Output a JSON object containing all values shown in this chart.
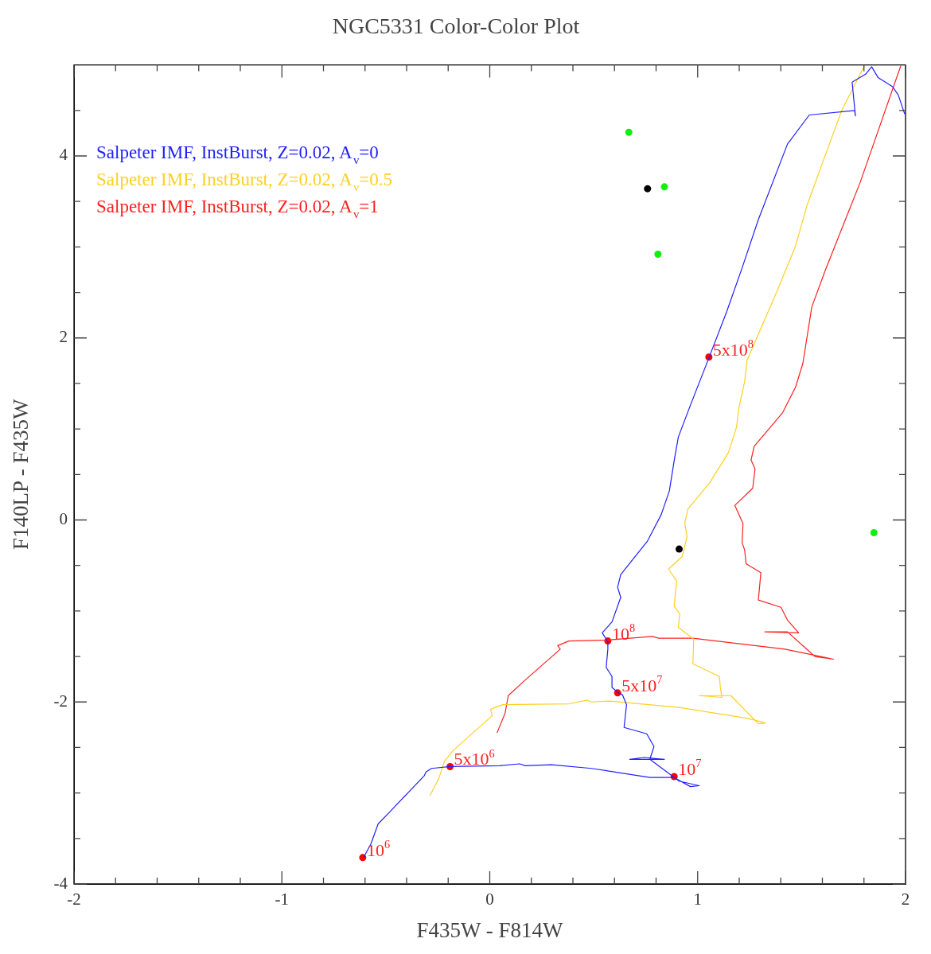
{
  "chart_data": {
    "type": "scatter",
    "title": "NGC5331 Color-Color Plot",
    "xlabel": "F435W - F814W",
    "ylabel": "F140LP - F435W",
    "xlim": [
      -2,
      2
    ],
    "ylim": [
      -4,
      5
    ],
    "xticks": [
      -2,
      {
        "value": -1.8,
        "label": null
      },
      {
        "value": -1.6,
        "label": null
      },
      {
        "value": -1.4,
        "label": null
      },
      {
        "value": -1.2,
        "label": null
      },
      -1,
      {
        "value": -0.8,
        "label": null
      },
      {
        "value": -0.6,
        "label": null
      },
      {
        "value": -0.4,
        "label": null
      },
      {
        "value": -0.2,
        "label": null
      },
      0,
      {
        "value": 0.2,
        "label": null
      },
      {
        "value": 0.4,
        "label": null
      },
      {
        "value": 0.6,
        "label": null
      },
      {
        "value": 0.8,
        "label": null
      },
      1,
      {
        "value": 1.2,
        "label": null
      },
      {
        "value": 1.4,
        "label": null
      },
      {
        "value": 1.6,
        "label": null
      },
      {
        "value": 1.8,
        "label": null
      },
      2
    ],
    "yticks": [
      -4,
      {
        "value": -3.5,
        "label": null
      },
      {
        "value": -3,
        "label": null
      },
      {
        "value": -2.5,
        "label": null
      },
      -2,
      {
        "value": -1.5,
        "label": null
      },
      {
        "value": -1,
        "label": null
      },
      {
        "value": -0.5,
        "label": null
      },
      0,
      {
        "value": 0.5,
        "label": null
      },
      {
        "value": 1,
        "label": null
      },
      {
        "value": 1.5,
        "label": null
      },
      2,
      {
        "value": 2.5,
        "label": null
      },
      {
        "value": 3,
        "label": null
      },
      {
        "value": 3.5,
        "label": null
      },
      4,
      {
        "value": 4.5,
        "label": null
      }
    ],
    "legend": "top left",
    "series": [
      {
        "name": "Salpeter IMF, InstBurst, Z=0.02, A$_{v}$=0",
        "type": "line",
        "marker": "none",
        "color": "#2020ff",
        "x": [
          -0.607,
          -0.572,
          -0.537,
          -0.482,
          -0.315,
          -0.307,
          -0.28,
          -0.191,
          0.047,
          0.144,
          0.171,
          0.296,
          0.49,
          0.77,
          0.887,
          0.965,
          1.008,
          0.911,
          0.77,
          0.673,
          0.743,
          0.84,
          0.77,
          0.79,
          0.755,
          0.646,
          0.658,
          0.638,
          0.619,
          0.588,
          0.588,
          0.56,
          0.568,
          0.568,
          0.541,
          0.588,
          0.63,
          0.615,
          0.63,
          0.759,
          0.825,
          0.864,
          0.887,
          0.907,
          0.965,
          1.054,
          1.14,
          1.214,
          1.292,
          1.432,
          1.537,
          1.755,
          1.759,
          1.743,
          1.809,
          1.837,
          1.868,
          1.938,
          1.965,
          1.996
        ],
        "values": [
          -3.71,
          -3.56,
          -3.34,
          -3.21,
          -2.81,
          -2.77,
          -2.73,
          -2.71,
          -2.7,
          -2.68,
          -2.7,
          -2.69,
          -2.73,
          -2.83,
          -2.83,
          -2.93,
          -2.92,
          -2.87,
          -2.63,
          -2.63,
          -2.61,
          -2.63,
          -2.63,
          -2.49,
          -2.35,
          -2.28,
          -2.03,
          -1.92,
          -1.9,
          -1.84,
          -1.72,
          -1.62,
          -1.42,
          -1.34,
          -1.24,
          -1.12,
          -0.85,
          -0.74,
          -0.6,
          -0.23,
          0.06,
          0.32,
          0.65,
          0.91,
          1.26,
          1.78,
          2.29,
          2.77,
          3.3,
          4.13,
          4.45,
          4.5,
          4.44,
          4.81,
          4.9,
          4.98,
          4.86,
          4.76,
          4.67,
          4.46
        ]
      },
      {
        "name": "Salpeter IMF, InstBurst, Z=0.02, A$_{v}$=0.5",
        "type": "line",
        "marker": "none",
        "color": "#ffd020",
        "x": [
          -0.288,
          -0.245,
          -0.218,
          -0.175,
          0.012,
          0.004,
          0.062,
          0.381,
          0.471,
          0.486,
          0.576,
          0.911,
          1.241,
          1.327,
          1.292,
          1.16,
          1.008,
          1.117,
          1.109,
          1.105,
          0.977,
          0.981,
          0.907,
          0.914,
          0.887,
          0.899,
          0.86,
          0.926,
          0.949,
          0.938,
          0.953,
          1.058,
          1.148,
          1.187,
          1.198,
          1.226,
          1.237,
          1.381,
          1.471,
          1.525,
          1.603,
          1.693,
          1.802
        ],
        "values": [
          -3.03,
          -2.84,
          -2.65,
          -2.53,
          -2.15,
          -2.08,
          -2.03,
          -2.02,
          -1.98,
          -2,
          -1.99,
          -2.06,
          -2.18,
          -2.23,
          -2.24,
          -1.93,
          -1.93,
          -1.95,
          -1.84,
          -1.72,
          -1.58,
          -1.31,
          -1.18,
          -1.03,
          -0.95,
          -0.67,
          -0.54,
          -0.4,
          -0.18,
          -0.03,
          0.12,
          0.41,
          0.74,
          1.02,
          1.23,
          1.52,
          1.75,
          2.51,
          3.01,
          3.45,
          3.94,
          4.5,
          4.99
        ]
      },
      {
        "name": "Salpeter IMF, InstBurst, Z=0.02, A$_{v}$=1",
        "type": "line",
        "marker": "none",
        "color": "#ff2020",
        "x": [
          0.035,
          0.074,
          0.089,
          0.16,
          0.339,
          0.327,
          0.381,
          0.568,
          0.782,
          0.813,
          0.977,
          1.42,
          1.654,
          1.564,
          1.432,
          1.323,
          1.486,
          1.432,
          1.401,
          1.292,
          1.304,
          1.233,
          1.226,
          1.214,
          1.218,
          1.179,
          1.265,
          1.276,
          1.257,
          1.272,
          1.409,
          1.471,
          1.506,
          1.549,
          1.615,
          1.782,
          1.977
        ],
        "values": [
          -2.34,
          -2.12,
          -1.93,
          -1.78,
          -1.42,
          -1.38,
          -1.33,
          -1.32,
          -1.28,
          -1.3,
          -1.3,
          -1.42,
          -1.53,
          -1.5,
          -1.23,
          -1.23,
          -1.24,
          -1.1,
          -0.96,
          -0.88,
          -0.58,
          -0.48,
          -0.33,
          -0.25,
          -0.04,
          0.16,
          0.35,
          0.56,
          0.66,
          0.81,
          1.18,
          1.46,
          1.72,
          2.34,
          2.75,
          3.71,
          4.99
        ]
      },
      {
        "marker": "circle",
        "color": "#10f010",
        "x": [
          0.669,
          0.84,
          0.809,
          1.848
        ],
        "values": [
          4.26,
          3.66,
          2.92,
          -0.14
        ]
      },
      {
        "marker": "circle",
        "color": "#000000",
        "x": [
          0.759,
          0.911
        ],
        "values": [
          3.64,
          -0.32
        ]
      },
      {
        "marker": "circle",
        "color": "#ff0000",
        "x": [
          -0.611,
          -0.191,
          0.887,
          0.615,
          0.568,
          1.054
        ],
        "values": [
          -3.71,
          -2.71,
          -2.82,
          -1.9,
          -1.33,
          1.79
        ]
      }
    ],
    "annotations": [
      {
        "text": "10$^{6}$",
        "x": -0.611,
        "y": -3.71
      },
      {
        "text": "5x10$^{6}$",
        "x": -0.191,
        "y": -2.71
      },
      {
        "text": "10$^{7}$",
        "x": 0.887,
        "y": -2.82
      },
      {
        "text": "5x10$^{7}$",
        "x": 0.615,
        "y": -1.9
      },
      {
        "text": "10$^{8}$",
        "x": 0.568,
        "y": -1.33
      },
      {
        "text": "5x10$^{8}$",
        "x": 1.054,
        "y": 1.79
      }
    ]
  }
}
